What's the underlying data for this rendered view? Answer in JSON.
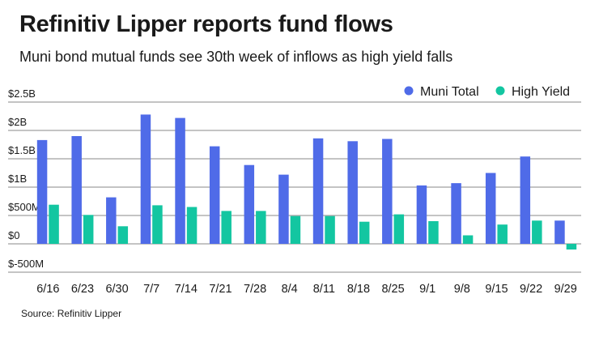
{
  "header": {
    "title": "Refinitiv Lipper reports fund flows",
    "subtitle": "Muni bond mutual funds see 30th week of inflows as high yield falls"
  },
  "footer": {
    "source": "Source: Refinitiv Lipper"
  },
  "colors": {
    "muni_total": "#4f6be8",
    "high_yield": "#13c6a1",
    "gridline": "#8a8a8a"
  },
  "chart_data": {
    "type": "bar",
    "title": "Refinitiv Lipper reports fund flows",
    "subtitle": "Muni bond mutual funds see 30th week of inflows as high yield falls",
    "xlabel": "",
    "ylabel": "",
    "categories": [
      "6/16",
      "6/23",
      "6/30",
      "7/7",
      "7/14",
      "7/21",
      "7/28",
      "8/4",
      "8/11",
      "8/18",
      "8/25",
      "9/1",
      "9/8",
      "9/15",
      "9/22",
      "9/29"
    ],
    "series": [
      {
        "name": "Muni Total",
        "values": [
          1.83,
          1.9,
          0.82,
          2.28,
          2.22,
          1.72,
          1.39,
          1.22,
          1.86,
          1.81,
          1.85,
          1.03,
          1.07,
          1.25,
          1.54,
          0.41
        ]
      },
      {
        "name": "High Yield",
        "values": [
          0.69,
          0.51,
          0.31,
          0.68,
          0.65,
          0.58,
          0.58,
          0.49,
          0.49,
          0.39,
          0.52,
          0.4,
          0.15,
          0.34,
          0.41,
          -0.1
        ]
      }
    ],
    "ylim": [
      -0.5,
      2.5
    ],
    "yticks": [
      2.5,
      2,
      1.5,
      1,
      0.5,
      0,
      -0.5
    ],
    "ytick_labels": [
      "$2.5B",
      "$2B",
      "$1.5B",
      "$1B",
      "$500M",
      "$0",
      "$-500M"
    ],
    "units": "billions of dollars",
    "grid": true,
    "legend_position": "top-right"
  }
}
